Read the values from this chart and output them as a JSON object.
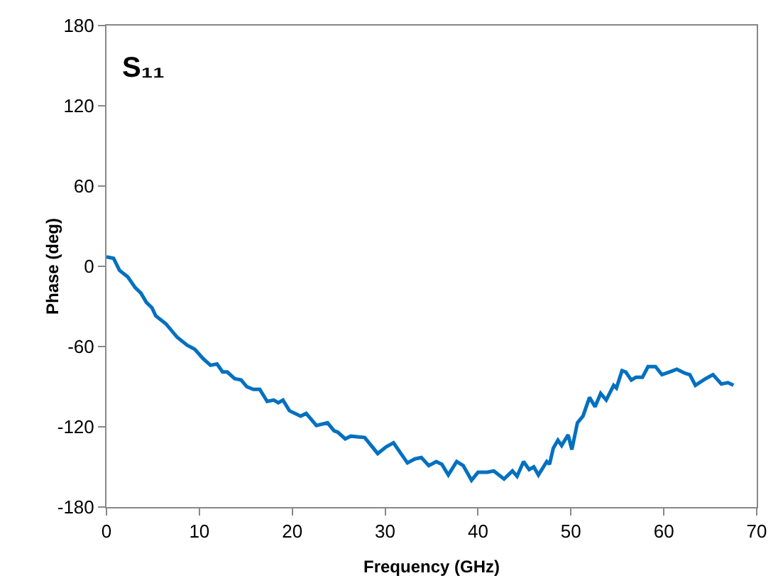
{
  "chart_data": {
    "type": "line",
    "title": "S₁₁",
    "xlabel": "Frequency (GHz)",
    "ylabel": "Phase (deg)",
    "xlim": [
      0,
      70
    ],
    "xticks": [
      0,
      10,
      20,
      30,
      40,
      50,
      60,
      70
    ],
    "ylim": [
      -180,
      180
    ],
    "yticks": [
      -180,
      -120,
      -60,
      0,
      60,
      120,
      180
    ],
    "grid": false,
    "marker": "none",
    "line_style": "solid",
    "x": [
      0,
      0.76,
      1.4,
      2.3,
      3.1,
      3.7,
      4.3,
      4.9,
      5.3,
      6.4,
      7.6,
      8.7,
      9.5,
      10.4,
      11.2,
      11.9,
      12.5,
      13,
      13.8,
      14.5,
      15.1,
      15.8,
      16.5,
      17.3,
      18,
      18.5,
      19,
      19.7,
      20.9,
      21.5,
      22.6,
      23.8,
      24.5,
      24.9,
      25.7,
      26.3,
      27.8,
      29.2,
      30.1,
      30.9,
      32.4,
      33.2,
      33.9,
      34.7,
      35.5,
      36.1,
      36.8,
      37.7,
      38.4,
      39.3,
      40,
      41,
      41.7,
      42.8,
      43.7,
      44.2,
      44.9,
      45.5,
      46,
      46.5,
      47.4,
      47.7,
      48.1,
      48.6,
      49,
      49.7,
      50.1,
      50.7,
      51.3,
      52,
      52.6,
      53.2,
      53.8,
      54.6,
      54.9,
      55.5,
      55.9,
      56.5,
      57,
      57.7,
      58.3,
      59.1,
      59.8,
      60.6,
      61.4,
      62.3,
      62.8,
      63.4,
      64.5,
      65.3,
      66.2,
      66.9,
      67.5
    ],
    "series": [
      {
        "color": "#0070c0",
        "values": [
          7,
          6,
          -3,
          -8,
          -16,
          -20,
          -27,
          -31,
          -37,
          -43,
          -53,
          -59,
          -62,
          -69,
          -74,
          -73,
          -79,
          -79,
          -84,
          -85,
          -90,
          -92,
          -92,
          -101,
          -100,
          -102,
          -100,
          -108,
          -112,
          -110,
          -119,
          -117,
          -123,
          -124,
          -129,
          -127,
          -128,
          -140,
          -135,
          -132,
          -147,
          -144,
          -143,
          -149,
          -146,
          -148,
          -156,
          -146,
          -149,
          -160,
          -154,
          -154,
          -153,
          -159,
          -153,
          -157,
          -146,
          -152,
          -150,
          -156,
          -146,
          -148,
          -136,
          -130,
          -134,
          -126,
          -137,
          -117,
          -112,
          -98,
          -105,
          -95,
          -100,
          -89,
          -91,
          -78,
          -79,
          -85,
          -83,
          -83,
          -75,
          -75,
          -81,
          -79,
          -77,
          -80,
          -81,
          -89,
          -84,
          -81,
          -88,
          -87,
          -89
        ]
      }
    ]
  }
}
